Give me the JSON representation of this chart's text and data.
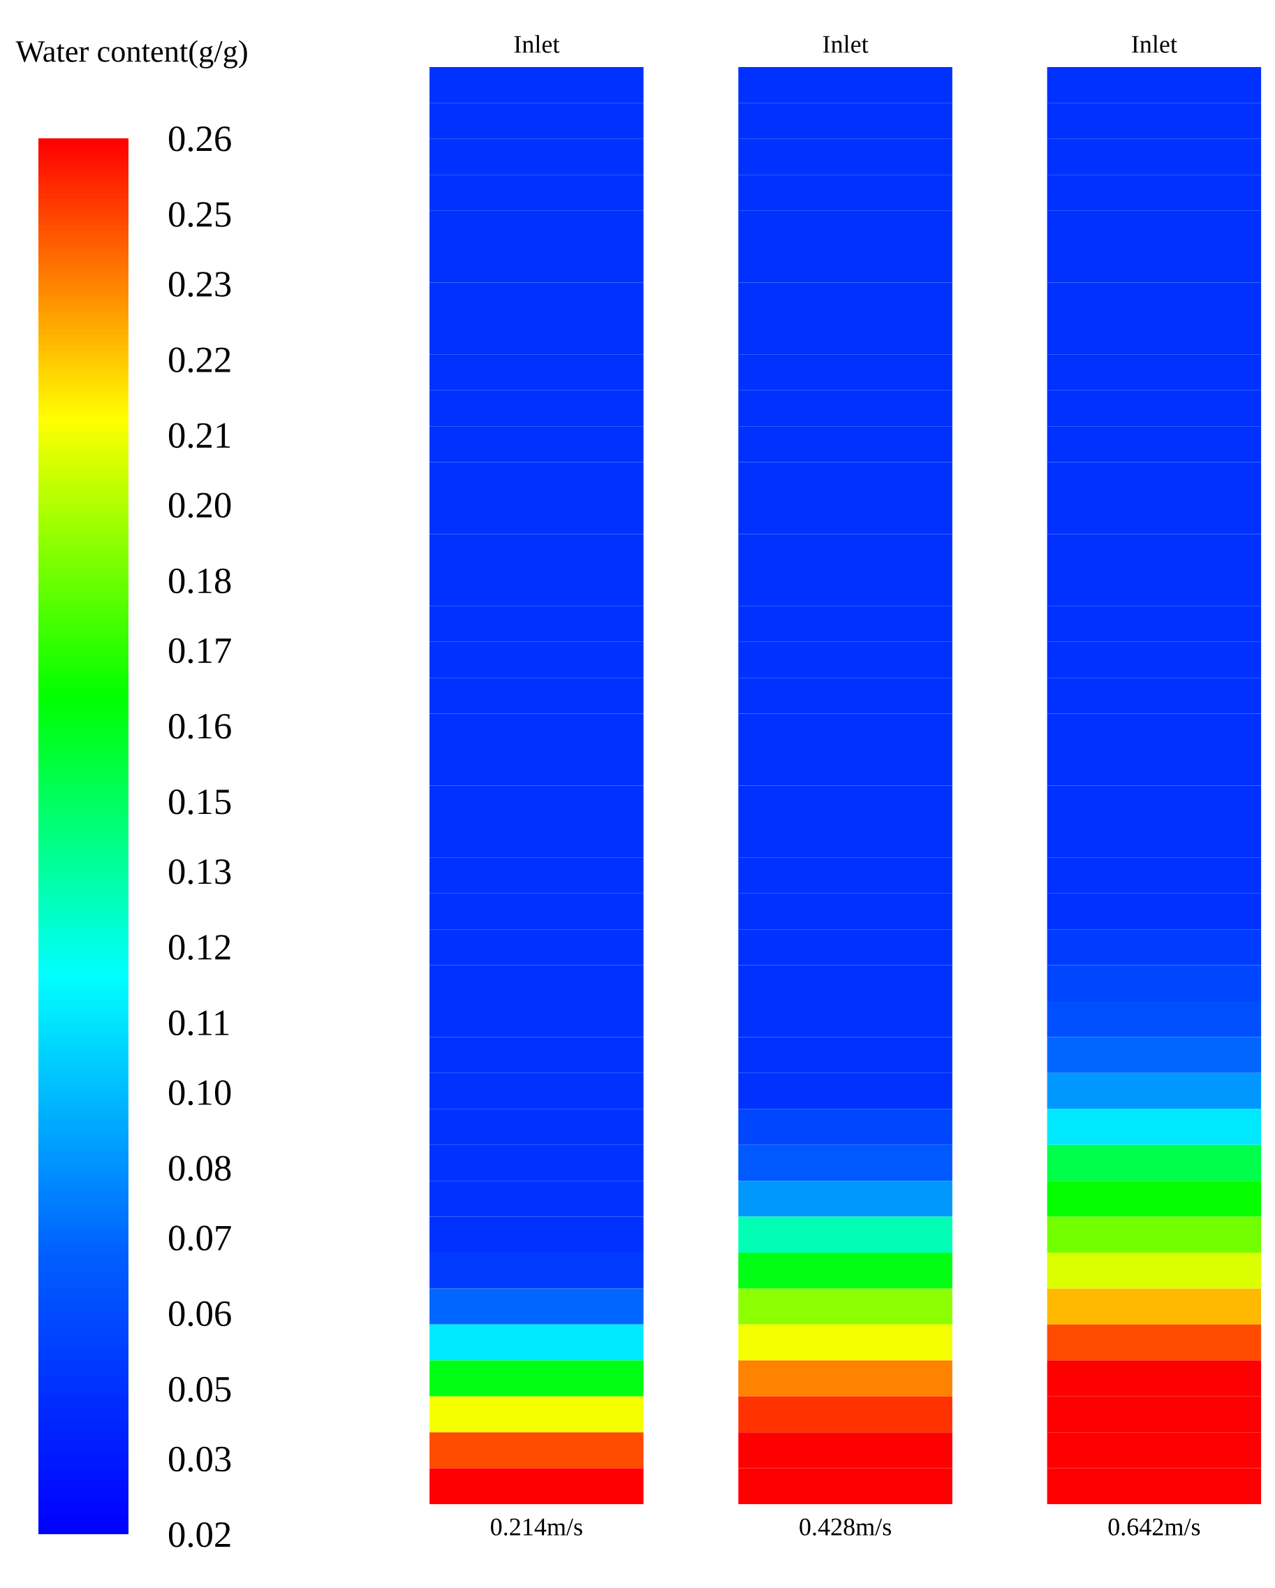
{
  "chart_data": {
    "type": "heatmap",
    "clabel": "Water content(g/g)",
    "annotations": [
      "Inlet",
      "Inlet",
      "Inlet"
    ],
    "categories": [
      "0.214m/s",
      "0.428m/s",
      "0.642m/s"
    ],
    "y_categories": [
      null,
      null,
      null,
      null,
      null,
      null,
      null,
      null,
      null,
      null,
      null,
      null,
      null,
      null,
      null,
      null,
      null,
      null,
      null,
      null,
      null,
      null,
      null,
      null,
      null,
      null,
      null,
      null,
      null,
      null,
      null,
      null,
      null,
      null,
      null,
      null,
      null,
      null,
      null,
      null
    ],
    "cells": [
      [
        0.045,
        0.045,
        0.045
      ],
      [
        0.045,
        0.045,
        0.045
      ],
      [
        0.045,
        0.045,
        0.045
      ],
      [
        0.045,
        0.045,
        0.045
      ],
      [
        0.045,
        0.045,
        0.045
      ],
      [
        0.045,
        0.045,
        0.045
      ],
      [
        0.045,
        0.045,
        0.045
      ],
      [
        0.045,
        0.045,
        0.045
      ],
      [
        0.045,
        0.045,
        0.045
      ],
      [
        0.045,
        0.045,
        0.045
      ],
      [
        0.045,
        0.045,
        0.045
      ],
      [
        0.045,
        0.045,
        0.045
      ],
      [
        0.045,
        0.045,
        0.045
      ],
      [
        0.045,
        0.045,
        0.045
      ],
      [
        0.045,
        0.045,
        0.045
      ],
      [
        0.045,
        0.045,
        0.045
      ],
      [
        0.045,
        0.045,
        0.045
      ],
      [
        0.045,
        0.045,
        0.045
      ],
      [
        0.045,
        0.045,
        0.045
      ],
      [
        0.045,
        0.045,
        0.045
      ],
      [
        0.045,
        0.045,
        0.045
      ],
      [
        0.045,
        0.045,
        0.045
      ],
      [
        0.045,
        0.045,
        0.045
      ],
      [
        0.045,
        0.045,
        0.045
      ],
      [
        0.045,
        0.045,
        0.05
      ],
      [
        0.045,
        0.045,
        0.055
      ],
      [
        0.045,
        0.045,
        0.06
      ],
      [
        0.045,
        0.045,
        0.07
      ],
      [
        0.045,
        0.045,
        0.085
      ],
      [
        0.045,
        0.055,
        0.11
      ],
      [
        0.045,
        0.065,
        0.15
      ],
      [
        0.045,
        0.085,
        0.165
      ],
      [
        0.045,
        0.13,
        0.185
      ],
      [
        0.05,
        0.16,
        0.205
      ],
      [
        0.07,
        0.19,
        0.225
      ],
      [
        0.11,
        0.21,
        0.245
      ],
      [
        0.16,
        0.235,
        0.26
      ],
      [
        0.21,
        0.25,
        0.26
      ],
      [
        0.245,
        0.26,
        0.26
      ],
      [
        0.26,
        0.26,
        0.26
      ]
    ],
    "clim": [
      0.02,
      0.26
    ],
    "cticks": [
      {
        "value": 0.02,
        "label": "0.02"
      },
      {
        "value": 0.033,
        "label": "0.03"
      },
      {
        "value": 0.045,
        "label": "0.05"
      },
      {
        "value": 0.058,
        "label": "0.06"
      },
      {
        "value": 0.071,
        "label": "0.07"
      },
      {
        "value": 0.083,
        "label": "0.08"
      },
      {
        "value": 0.096,
        "label": "0.10"
      },
      {
        "value": 0.108,
        "label": "0.11"
      },
      {
        "value": 0.121,
        "label": "0.12"
      },
      {
        "value": 0.134,
        "label": "0.13"
      },
      {
        "value": 0.146,
        "label": "0.15"
      },
      {
        "value": 0.159,
        "label": "0.16"
      },
      {
        "value": 0.172,
        "label": "0.17"
      },
      {
        "value": 0.184,
        "label": "0.18"
      },
      {
        "value": 0.197,
        "label": "0.20"
      },
      {
        "value": 0.209,
        "label": "0.21"
      },
      {
        "value": 0.222,
        "label": "0.22"
      },
      {
        "value": 0.235,
        "label": "0.23"
      },
      {
        "value": 0.247,
        "label": "0.25"
      },
      {
        "value": 0.26,
        "label": "0.26"
      }
    ]
  }
}
